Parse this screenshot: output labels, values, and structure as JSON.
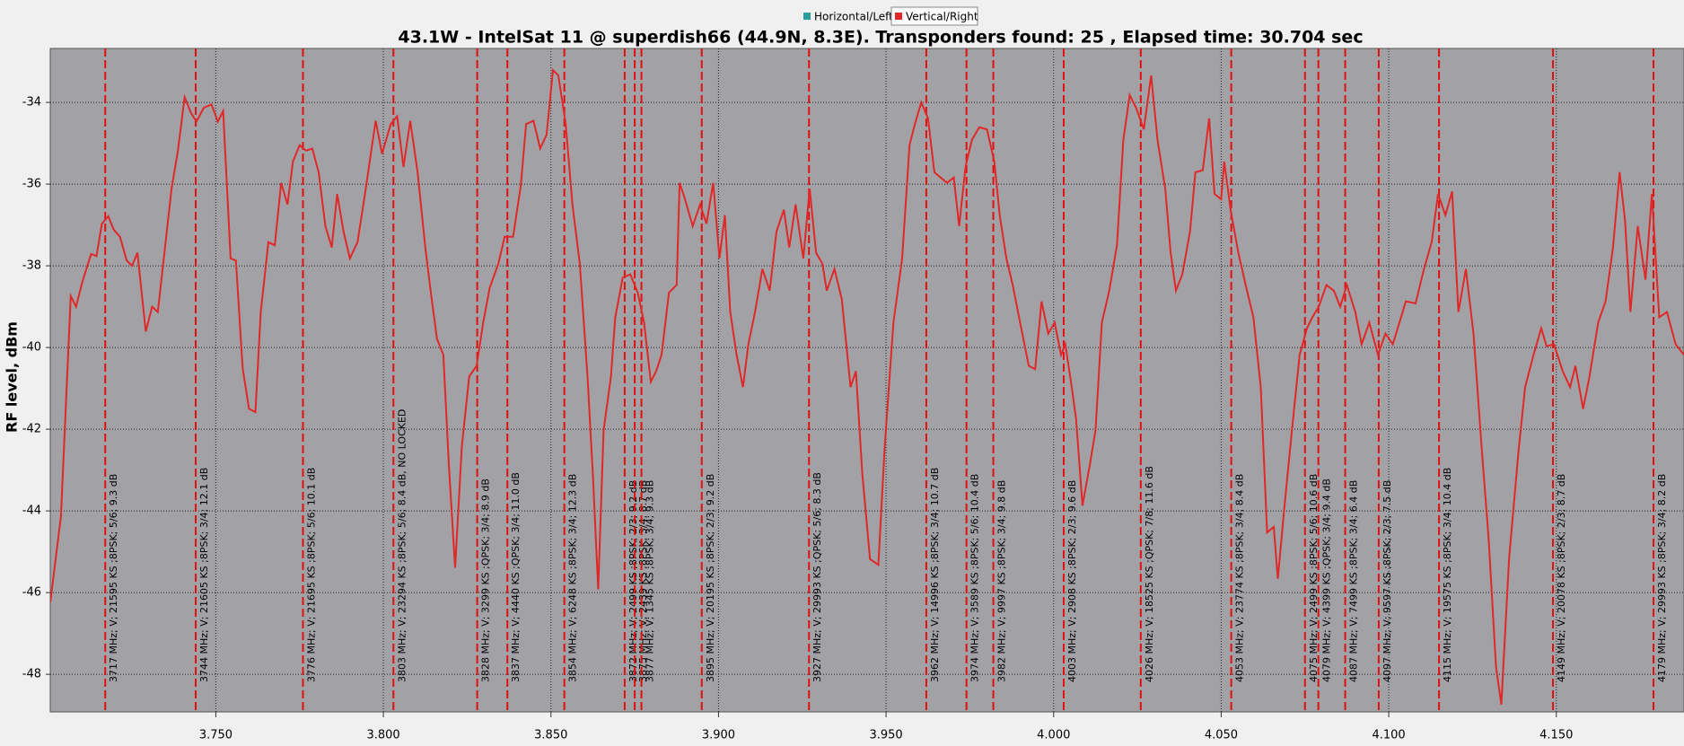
{
  "chart_data": {
    "type": "line",
    "title": "43.1W - IntelSat 11 @ superdish66 (44.9N, 8.3E). Transponders found: 25 , Elapsed time: 30.704 sec",
    "y_label": "RF level, dBm",
    "xlim": [
      3.7006,
      4.1881
    ],
    "ylim": [
      -48.92,
      -32.68
    ],
    "xticks": [
      {
        "value": 3.75,
        "label": "3.750"
      },
      {
        "value": 3.8,
        "label": "3.800"
      },
      {
        "value": 3.85,
        "label": "3.850"
      },
      {
        "value": 3.9,
        "label": "3.900"
      },
      {
        "value": 3.95,
        "label": "3.950"
      },
      {
        "value": 4.0,
        "label": "4.000"
      },
      {
        "value": 4.05,
        "label": "4.050"
      },
      {
        "value": 4.1,
        "label": "4.100"
      },
      {
        "value": 4.15,
        "label": "4.150"
      }
    ],
    "yticks": [
      -34,
      -36,
      -38,
      -40,
      -42,
      -44,
      -46,
      -48
    ],
    "grid": true,
    "legend": "top",
    "series": [
      {
        "name": "Horizontal/Left",
        "color": "#2a9d9d"
      },
      {
        "name": "Vertical/Right",
        "color": "#e02828",
        "x": [
          3.7006,
          3.7038,
          3.7067,
          3.7083,
          3.7102,
          3.7128,
          3.7144,
          3.716,
          3.7179,
          3.7195,
          3.7214,
          3.7234,
          3.725,
          3.7266,
          3.7291,
          3.731,
          3.7327,
          3.7343,
          3.7368,
          3.7387,
          3.7407,
          3.7426,
          3.7442,
          3.7464,
          3.7487,
          3.7506,
          3.7522,
          3.7544,
          3.756,
          3.758,
          3.7599,
          3.7618,
          3.7634,
          3.7657,
          3.7676,
          3.7695,
          3.7714,
          3.773,
          3.775,
          3.7769,
          3.7788,
          3.7807,
          3.7827,
          3.7846,
          3.7862,
          3.7881,
          3.79,
          3.7923,
          3.7945,
          3.7977,
          3.7996,
          3.8022,
          3.8041,
          3.806,
          3.808,
          3.8102,
          3.8125,
          3.8141,
          3.816,
          3.8179,
          3.8195,
          3.8214,
          3.8234,
          3.8256,
          3.8278,
          3.8298,
          3.8317,
          3.8343,
          3.8362,
          3.8387,
          3.841,
          3.8426,
          3.8448,
          3.8468,
          3.8487,
          3.8506,
          3.8522,
          3.8544,
          3.8564,
          3.8586,
          3.8609,
          3.8625,
          3.8641,
          3.8657,
          3.8679,
          3.8692,
          3.8714,
          3.8737,
          3.8759,
          3.8778,
          3.8798,
          3.8814,
          3.883,
          3.8852,
          3.8875,
          3.8884,
          3.89,
          3.8923,
          3.8945,
          3.8964,
          3.8984,
          3.9003,
          3.9019,
          3.9035,
          3.9054,
          3.9073,
          3.9089,
          3.9109,
          3.9131,
          3.9153,
          3.9173,
          3.9195,
          3.9211,
          3.923,
          3.9253,
          3.9272,
          3.9291,
          3.931,
          3.9323,
          3.9346,
          3.9368,
          3.9394,
          3.941,
          3.9429,
          3.9452,
          3.9477,
          3.9496,
          3.9522,
          3.9548,
          3.957,
          3.9586,
          3.9605,
          3.9625,
          3.9644,
          3.9663,
          3.9682,
          3.9702,
          3.9718,
          3.9737,
          3.9756,
          3.9778,
          3.9801,
          3.9823,
          3.9839,
          3.9859,
          3.9878,
          3.99,
          3.9926,
          3.9945,
          3.9964,
          3.9984,
          4.0003,
          4.0022,
          4.0035,
          4.0054,
          4.0067,
          4.0086,
          4.0109,
          4.0125,
          4.0144,
          4.0166,
          4.0189,
          4.0208,
          4.0227,
          4.0246,
          4.0269,
          4.0291,
          4.031,
          4.0333,
          4.0349,
          4.0365,
          4.0384,
          4.0407,
          4.0423,
          4.0445,
          4.0464,
          4.048,
          4.05,
          4.0509,
          4.0528,
          4.0551,
          4.0573,
          4.0596,
          4.0618,
          4.0637,
          4.0657,
          4.0669,
          4.0689,
          4.0711,
          4.0734,
          4.0756,
          4.0772,
          4.0791,
          4.0814,
          4.0836,
          4.0855,
          4.0875,
          4.09,
          4.0919,
          4.0942,
          4.0968,
          4.099,
          4.1012,
          4.1032,
          4.1051,
          4.108,
          4.1105,
          4.1128,
          4.1147,
          4.1169,
          4.1189,
          4.1208,
          4.123,
          4.1253,
          4.1278,
          4.1298,
          4.132,
          4.1336,
          4.1359,
          4.1387,
          4.1407,
          4.1432,
          4.1455,
          4.1471,
          4.1493,
          4.1519,
          4.1541,
          4.1557,
          4.158,
          4.1599,
          4.1625,
          4.1647,
          4.1669,
          4.1689,
          4.1705,
          4.1721,
          4.1743,
          4.1766,
          4.1785,
          4.1807,
          4.183,
          4.1856,
          4.1881
        ],
        "values": [
          -46.24,
          -44.13,
          -38.74,
          -39.0,
          -38.39,
          -37.71,
          -37.76,
          -36.97,
          -36.79,
          -37.11,
          -37.29,
          -37.87,
          -38.0,
          -37.68,
          -39.61,
          -39.0,
          -39.13,
          -37.95,
          -36.11,
          -35.18,
          -33.87,
          -34.26,
          -34.47,
          -34.13,
          -34.05,
          -34.47,
          -34.21,
          -37.82,
          -37.87,
          -40.5,
          -41.5,
          -41.58,
          -39.13,
          -37.42,
          -37.5,
          -35.97,
          -36.5,
          -35.45,
          -35.05,
          -35.18,
          -35.13,
          -35.71,
          -37.03,
          -37.55,
          -36.24,
          -37.16,
          -37.82,
          -37.42,
          -36.24,
          -34.45,
          -35.26,
          -34.53,
          -34.34,
          -35.58,
          -34.45,
          -35.71,
          -37.55,
          -38.61,
          -39.79,
          -40.18,
          -42.82,
          -45.39,
          -42.42,
          -40.71,
          -40.45,
          -39.39,
          -38.55,
          -37.95,
          -37.29,
          -37.29,
          -36.03,
          -34.53,
          -34.45,
          -35.13,
          -34.79,
          -33.21,
          -33.34,
          -34.53,
          -36.5,
          -37.95,
          -40.71,
          -43.08,
          -45.92,
          -42.03,
          -40.71,
          -39.26,
          -38.29,
          -38.21,
          -38.66,
          -39.39,
          -40.84,
          -40.58,
          -40.18,
          -38.66,
          -38.47,
          -35.97,
          -36.37,
          -37.03,
          -36.5,
          -36.97,
          -35.97,
          -37.82,
          -36.76,
          -39.13,
          -40.18,
          -40.97,
          -39.92,
          -39.13,
          -38.08,
          -38.61,
          -37.16,
          -36.63,
          -37.55,
          -36.5,
          -37.82,
          -36.11,
          -37.68,
          -37.95,
          -38.61,
          -38.08,
          -38.82,
          -40.97,
          -40.58,
          -43.08,
          -45.18,
          -45.32,
          -42.42,
          -39.39,
          -37.82,
          -35.05,
          -34.53,
          -34.0,
          -34.39,
          -35.71,
          -35.84,
          -35.97,
          -35.84,
          -37.03,
          -35.58,
          -34.92,
          -34.61,
          -34.66,
          -35.45,
          -36.76,
          -37.82,
          -38.47,
          -39.39,
          -40.45,
          -40.53,
          -38.87,
          -39.66,
          -39.39,
          -40.18,
          -39.92,
          -40.97,
          -41.76,
          -43.87,
          -42.82,
          -42.03,
          -39.39,
          -38.61,
          -37.5,
          -34.92,
          -33.82,
          -34.13,
          -34.66,
          -33.34,
          -34.92,
          -36.11,
          -37.68,
          -38.61,
          -38.21,
          -37.16,
          -35.71,
          -35.66,
          -34.39,
          -36.24,
          -36.37,
          -35.45,
          -36.63,
          -37.68,
          -38.47,
          -39.26,
          -40.97,
          -44.53,
          -44.39,
          -45.66,
          -43.87,
          -42.03,
          -40.18,
          -39.53,
          -39.26,
          -39.0,
          -38.47,
          -38.61,
          -39.0,
          -38.47,
          -39.13,
          -39.92,
          -39.39,
          -40.18,
          -39.66,
          -39.92,
          -39.39,
          -38.87,
          -38.92,
          -38.08,
          -37.42,
          -36.24,
          -36.76,
          -36.18,
          -39.13,
          -38.08,
          -39.66,
          -42.55,
          -44.66,
          -47.82,
          -48.74,
          -45.18,
          -42.55,
          -40.97,
          -40.18,
          -39.53,
          -39.97,
          -39.92,
          -40.58,
          -40.97,
          -40.45,
          -41.5,
          -40.71,
          -39.39,
          -38.87,
          -37.55,
          -35.71,
          -36.89,
          -39.13,
          -37.03,
          -38.34,
          -36.24,
          -39.26,
          -39.13,
          -39.92,
          -40.18
        ]
      }
    ],
    "transponders": [
      {
        "freq": 3.717,
        "label": "3717 MHz; V; 21595 KS ;8PSK; 5/6; 9.3 dB"
      },
      {
        "freq": 3.744,
        "label": "3744 MHz; V; 21605 KS ;8PSK; 3/4; 12.1 dB"
      },
      {
        "freq": 3.776,
        "label": "3776 MHz; V; 21695 KS ;8PSK; 5/6; 10.1 dB"
      },
      {
        "freq": 3.803,
        "label": "3803 MHz; V; 23294 KS ;8PSK; 5/6; 8.4 dB, NO LOCKED"
      },
      {
        "freq": 3.828,
        "label": "3828 MHz; V; 3299 KS ;QPSK; 3/4; 8.9 dB"
      },
      {
        "freq": 3.837,
        "label": "3837 MHz; V; 4440 KS ;QPSK; 3/4; 11.0 dB"
      },
      {
        "freq": 3.854,
        "label": "3854 MHz; V; 6248 KS ;8PSK; 3/4; 12.3 dB"
      },
      {
        "freq": 3.872,
        "label": "3872 MHz; V; 2499 KS ;8PSK; 2/3; 9.2 dB"
      },
      {
        "freq": 3.875,
        "label": "3875 MHz; V; 2439 KS ;8PSK; 3/4; 8.7 dB"
      },
      {
        "freq": 3.877,
        "label": "3877 MHz; V; 1345 KS ;8PSK; 3/4; 9.3 dB"
      },
      {
        "freq": 3.895,
        "label": "3895 MHz; V; 20195 KS ;8PSK; 2/3; 9.2 dB"
      },
      {
        "freq": 3.927,
        "label": "3927 MHz; V; 29993 KS ;QPSK; 5/6; 8.3 dB"
      },
      {
        "freq": 3.962,
        "label": "3962 MHz; V; 14996 KS ;8PSK; 3/4; 10.7 dB"
      },
      {
        "freq": 3.974,
        "label": "3974 MHz; V; 3589 KS ;8PSK; 5/6; 10.4 dB"
      },
      {
        "freq": 3.982,
        "label": "3982 MHz; V; 9997 KS ;8PSK; 3/4; 9.8 dB"
      },
      {
        "freq": 4.003,
        "label": "4003 MHz; V; 2908 KS ;8PSK; 2/3; 9.6 dB"
      },
      {
        "freq": 4.026,
        "label": "4026 MHz; V; 18525 KS ;QPSK; 7/8; 11.6 dB"
      },
      {
        "freq": 4.053,
        "label": "4053 MHz; V; 23774 KS ;8PSK; 3/4; 8.4 dB"
      },
      {
        "freq": 4.075,
        "label": "4075 MHz; V; 2499 KS ;8PSK; 5/6; 10.6 dB"
      },
      {
        "freq": 4.079,
        "label": "4079 MHz; V; 4399 KS ;QPSK; 3/4; 9.4 dB"
      },
      {
        "freq": 4.087,
        "label": "4087 MHz; V; 7499 KS ;8PSK; 3/4; 6.4 dB"
      },
      {
        "freq": 4.097,
        "label": "4097 MHz; V; 9597 KS ;8PSK; 2/3; 7.5 dB"
      },
      {
        "freq": 4.115,
        "label": "4115 MHz; V; 19575 KS ;8PSK; 3/4; 10.4 dB"
      },
      {
        "freq": 4.149,
        "label": "4149 MHz; V; 20078 KS ;8PSK; 2/3; 8.7 dB"
      },
      {
        "freq": 4.179,
        "label": "4179 MHz; V; 29993 KS ;8PSK; 3/4; 8.2 dB"
      }
    ]
  }
}
